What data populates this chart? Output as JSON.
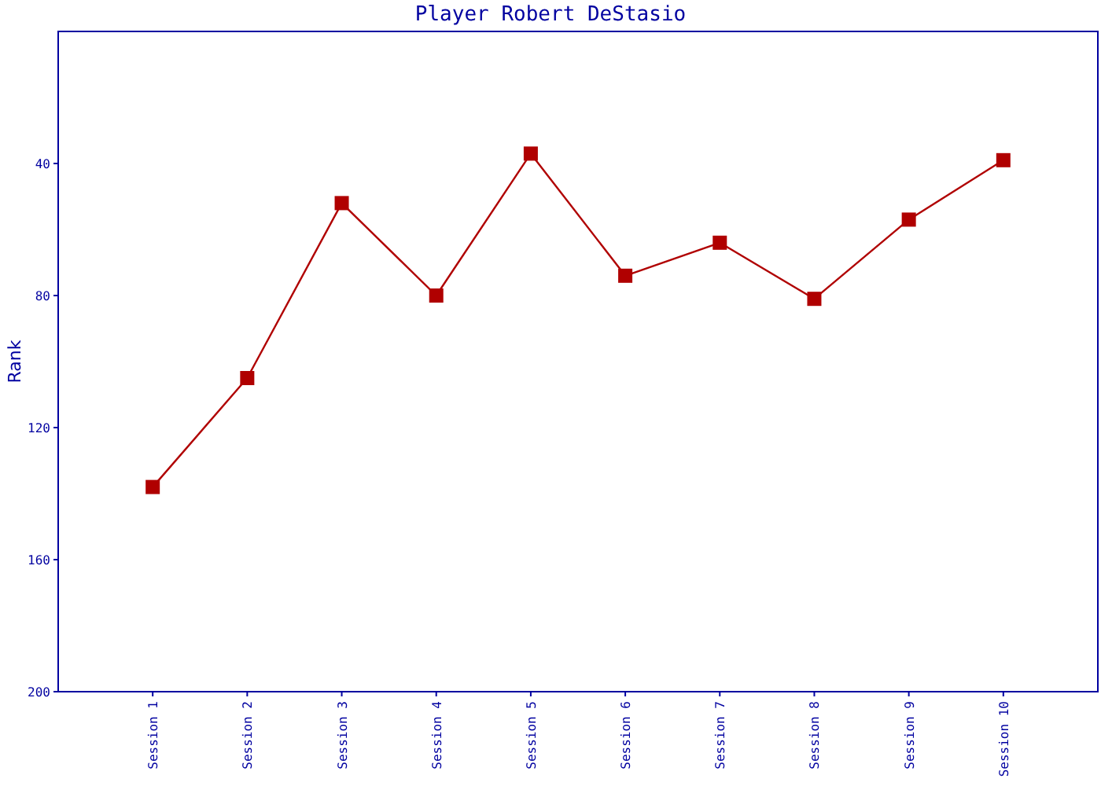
{
  "chart_data": {
    "type": "line",
    "title": "Player Robert DeStasio",
    "ylabel": "Rank",
    "categories": [
      "Session 1",
      "Session 2",
      "Session 3",
      "Session 4",
      "Session 5",
      "Session 6",
      "Session 7",
      "Session 8",
      "Session 9",
      "Session 10"
    ],
    "series": [
      {
        "color": "#b00000",
        "values": [
          138,
          105,
          52,
          80,
          37,
          74,
          64,
          81,
          57,
          39
        ]
      }
    ],
    "ylim": [
      200,
      0
    ],
    "yticks": [
      40,
      80,
      120,
      160,
      200
    ],
    "marker": "square",
    "line_style": "solid",
    "grid": false
  }
}
